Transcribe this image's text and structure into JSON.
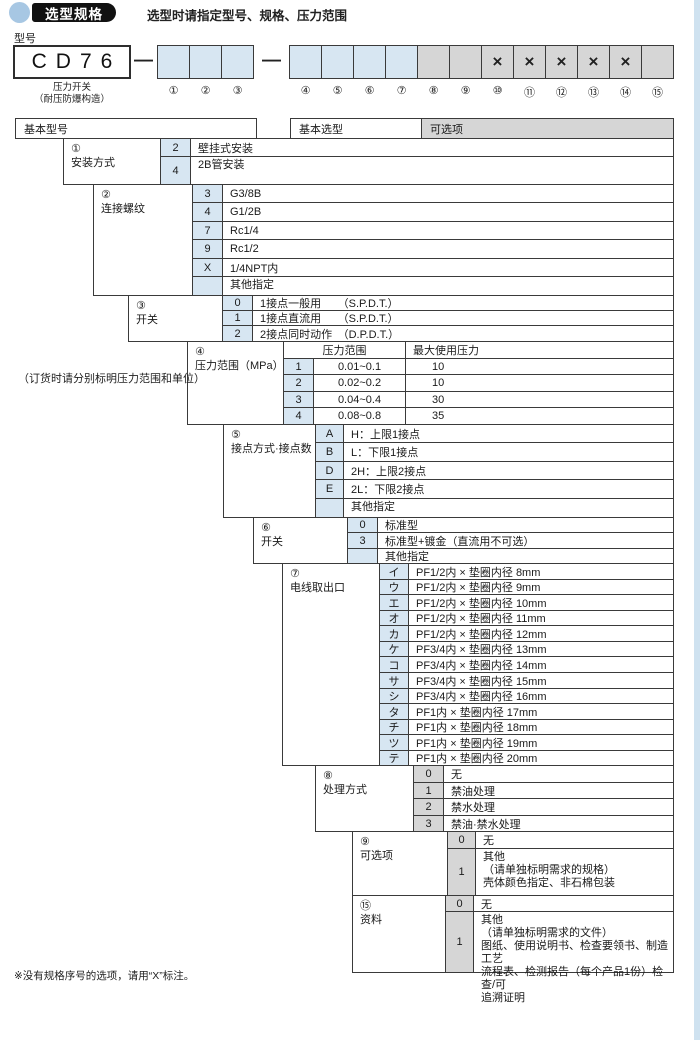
{
  "page": {
    "badge_text": "选型规格",
    "subtitle": "选型时请指定型号、规格、压力范围",
    "model_label": "型号",
    "model_code": "CD76",
    "model_code_display": "CD76",
    "model_caption_line1": "压力开关",
    "model_caption_line2": "（耐压防爆构造）",
    "dash": "—",
    "order_note": "（订货时请分别标明压力范围和单位）",
    "footnote": "※没有规格序号的选项，请用“X”标注。"
  },
  "table_headers": {
    "basic_model": "基本型号",
    "basic_selection": "基本选型",
    "optional": "可选项"
  },
  "model_boxes": [
    {
      "n": "①",
      "fill": "blue",
      "mark": ""
    },
    {
      "n": "②",
      "fill": "blue",
      "mark": ""
    },
    {
      "n": "③",
      "fill": "blue",
      "mark": ""
    },
    {
      "n": "④",
      "fill": "blue",
      "mark": ""
    },
    {
      "n": "⑤",
      "fill": "blue",
      "mark": ""
    },
    {
      "n": "⑥",
      "fill": "blue",
      "mark": ""
    },
    {
      "n": "⑦",
      "fill": "blue",
      "mark": ""
    },
    {
      "n": "⑧",
      "fill": "gray",
      "mark": ""
    },
    {
      "n": "⑨",
      "fill": "gray",
      "mark": ""
    },
    {
      "n": "⑩",
      "fill": "gray",
      "mark": "×"
    },
    {
      "n": "⑪",
      "fill": "gray",
      "mark": "×"
    },
    {
      "n": "⑫",
      "fill": "gray",
      "mark": "×"
    },
    {
      "n": "⑬",
      "fill": "gray",
      "mark": "×"
    },
    {
      "n": "⑭",
      "fill": "gray",
      "mark": "×"
    },
    {
      "n": "⑮",
      "fill": "gray",
      "mark": ""
    }
  ],
  "colors": {
    "cell_blue": "#d7e6f2",
    "cell_gray": "#d6d6d6",
    "border": "#3a3a3a",
    "badge": "#111111",
    "circle_blue": "#a7c7e3",
    "edge_strip": "#cfe2f0"
  },
  "sections": [
    {
      "id": "s1",
      "num": "①",
      "name": "安装方式",
      "color": "blue",
      "rows": [
        {
          "code": "2",
          "desc": "壁挂式安装"
        },
        {
          "code": "4",
          "desc": "2B管安装",
          "valign": "top"
        }
      ]
    },
    {
      "id": "s2",
      "num": "②",
      "name": "连接螺纹",
      "color": "blue",
      "rows": [
        {
          "code": "3",
          "desc": "G3/8B"
        },
        {
          "code": "4",
          "desc": "G1/2B"
        },
        {
          "code": "7",
          "desc": "Rc1/4"
        },
        {
          "code": "9",
          "desc": "Rc1/2"
        },
        {
          "code": "X",
          "desc": "1/4NPT内"
        },
        {
          "code": "",
          "desc": "其他指定",
          "valign": "top"
        }
      ]
    },
    {
      "id": "s3",
      "num": "③",
      "name": "开关",
      "color": "blue",
      "rows": [
        {
          "code": "0",
          "desc": "1接点一般用　　（S.P.D.T.）"
        },
        {
          "code": "1",
          "desc": "1接点直流用　　（S.P.D.T.）"
        },
        {
          "code": "2",
          "desc": "2接点同时动作　（D.P.D.T.）"
        }
      ]
    },
    {
      "id": "s4",
      "num": "④",
      "name": "压力范围（MPa）",
      "color": "blue",
      "header": {
        "col1": "压力范围",
        "col2": "最大使用压力"
      },
      "rows": [
        {
          "code": "1",
          "range": "0.01~0.1",
          "max": "10"
        },
        {
          "code": "2",
          "range": "0.02~0.2",
          "max": "10"
        },
        {
          "code": "3",
          "range": "0.04~0.4",
          "max": "30"
        },
        {
          "code": "4",
          "range": "0.08~0.8",
          "max": "35"
        }
      ]
    },
    {
      "id": "s5",
      "num": "⑤",
      "name": "接点方式·接点数",
      "color": "blue",
      "rows": [
        {
          "code": "A",
          "desc": "H：上限1接点"
        },
        {
          "code": "B",
          "desc": "L：下限1接点"
        },
        {
          "code": "D",
          "desc": "2H：上限2接点"
        },
        {
          "code": "E",
          "desc": "2L：下限2接点"
        },
        {
          "code": "",
          "desc": "其他指定",
          "valign": "top"
        }
      ]
    },
    {
      "id": "s6",
      "num": "⑥",
      "name": "开关",
      "color": "blue",
      "rows": [
        {
          "code": "0",
          "desc": "标准型"
        },
        {
          "code": "3",
          "desc": "标准型+镀金（直流用不可选）"
        },
        {
          "code": "",
          "desc": "其他指定"
        }
      ]
    },
    {
      "id": "s7",
      "num": "⑦",
      "name": "电线取出口",
      "color": "blue",
      "rows": [
        {
          "code": "イ",
          "desc": "PF1/2内 × 垫圈内径 8mm"
        },
        {
          "code": "ウ",
          "desc": "PF1/2内 × 垫圈内径 9mm"
        },
        {
          "code": "エ",
          "desc": "PF1/2内 × 垫圈内径 10mm"
        },
        {
          "code": "オ",
          "desc": "PF1/2内 × 垫圈内径 11mm"
        },
        {
          "code": "カ",
          "desc": "PF1/2内 × 垫圈内径 12mm"
        },
        {
          "code": "ケ",
          "desc": "PF3/4内 × 垫圈内径 13mm"
        },
        {
          "code": "コ",
          "desc": "PF3/4内 × 垫圈内径 14mm"
        },
        {
          "code": "サ",
          "desc": "PF3/4内 × 垫圈内径 15mm"
        },
        {
          "code": "シ",
          "desc": "PF3/4内 × 垫圈内径 16mm"
        },
        {
          "code": "タ",
          "desc": "PF1内 × 垫圈内径 17mm"
        },
        {
          "code": "チ",
          "desc": "PF1内 × 垫圈内径 18mm"
        },
        {
          "code": "ツ",
          "desc": "PF1内 × 垫圈内径 19mm"
        },
        {
          "code": "テ",
          "desc": "PF1内 × 垫圈内径 20mm"
        }
      ]
    },
    {
      "id": "s8",
      "num": "⑧",
      "name": "处理方式",
      "color": "gray",
      "rows": [
        {
          "code": "0",
          "desc": "无"
        },
        {
          "code": "1",
          "desc": "禁油处理"
        },
        {
          "code": "2",
          "desc": "禁水处理"
        },
        {
          "code": "3",
          "desc": "禁油·禁水处理"
        }
      ]
    },
    {
      "id": "s9",
      "num": "⑨",
      "name": "可选项",
      "color": "gray",
      "rows": [
        {
          "code": "0",
          "desc": "无"
        },
        {
          "code": "1",
          "desc": "其他\n（请单独标明需求的规格）\n壳体颜色指定、非石棉包装",
          "valign": "top"
        }
      ]
    },
    {
      "id": "s15",
      "num": "⑮",
      "name": "资料",
      "color": "gray",
      "rows": [
        {
          "code": "0",
          "desc": "无"
        },
        {
          "code": "1",
          "desc": "其他\n（请单独标明需求的文件）\n图纸、使用说明书、检查要领书、制造工艺\n流程表、检测报告（每个产品1份）检查/可\n追溯证明",
          "valign": "top"
        }
      ]
    }
  ]
}
